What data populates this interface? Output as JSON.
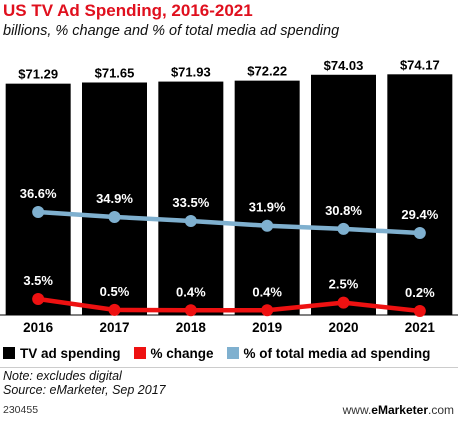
{
  "chart_data": {
    "type": "bar",
    "title": "US TV Ad Spending, 2016-2021",
    "subtitle": "billions, % change and % of total media ad spending",
    "categories": [
      "2016",
      "2017",
      "2018",
      "2019",
      "2020",
      "2021"
    ],
    "series": [
      {
        "name": "TV ad spending",
        "type": "bar",
        "color": "#000000",
        "values": [
          71.29,
          71.65,
          71.93,
          72.22,
          74.03,
          74.17
        ],
        "labels": [
          "$71.29",
          "$71.65",
          "$71.93",
          "$72.22",
          "$74.03",
          "$74.17"
        ]
      },
      {
        "name": "% change",
        "type": "line",
        "color": "#ee1111",
        "values": [
          3.5,
          0.5,
          0.4,
          0.4,
          2.5,
          0.2
        ],
        "labels": [
          "3.5%",
          "0.5%",
          "0.4%",
          "0.4%",
          "2.5%",
          "0.2%"
        ]
      },
      {
        "name": "% of total media ad spending",
        "type": "line",
        "color": "#7fb0cf",
        "values": [
          36.6,
          34.9,
          33.5,
          31.9,
          30.8,
          29.4
        ],
        "labels": [
          "36.6%",
          "34.9%",
          "33.5%",
          "31.9%",
          "30.8%",
          "29.4%"
        ]
      }
    ],
    "grid": false,
    "legend": "bottom"
  },
  "footer": {
    "note": "Note: excludes digital",
    "source": "Source: eMarketer, Sep 2017",
    "chart_id": "230455",
    "brand_prefix": "www.",
    "brand_name": "eMarketer",
    "brand_suffix": ".com"
  }
}
